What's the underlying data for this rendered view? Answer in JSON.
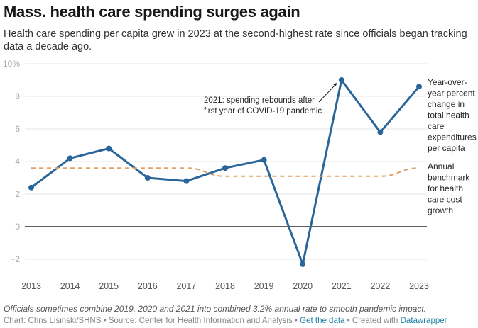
{
  "header": {
    "title": "Mass. health care spending surges again",
    "subtitle": "Health care spending per capita grew in 2023 at the second-highest rate since officials began tracking data a decade ago."
  },
  "chart_data": {
    "type": "line",
    "title": "Mass. health care spending surges again",
    "xlabel": "",
    "ylabel": "",
    "x": [
      "2013",
      "2014",
      "2015",
      "2016",
      "2017",
      "2018",
      "2019",
      "2020",
      "2021",
      "2022",
      "2023"
    ],
    "ylim": [
      -3,
      10
    ],
    "yticks": [
      -2,
      0,
      2,
      4,
      6,
      8,
      10
    ],
    "ytick_labels": [
      "−2",
      "0",
      "2",
      "4",
      "6",
      "8",
      "10%"
    ],
    "grid": true,
    "series": [
      {
        "name": "Year-over-year percent change in total health care expenditures per capita",
        "label_lines": [
          "Year-over-",
          "year percent",
          "change in",
          "total health",
          "care",
          "expenditures",
          "per capita"
        ],
        "color": "#2a6599",
        "style": "solid",
        "markers": true,
        "values": [
          2.4,
          4.2,
          4.8,
          3.0,
          2.8,
          3.6,
          4.1,
          -2.3,
          9.0,
          5.8,
          8.6
        ]
      },
      {
        "name": "Annual benchmark for health care cost growth",
        "label_lines": [
          "Annual",
          "benchmark",
          "for health",
          "care cost",
          "growth"
        ],
        "color": "#e0a165",
        "style": "dashed",
        "markers": false,
        "values": [
          3.6,
          3.6,
          3.6,
          3.6,
          3.6,
          3.1,
          3.1,
          3.1,
          3.1,
          3.1,
          3.6
        ]
      }
    ],
    "annotations": [
      {
        "x": "2021",
        "y": 9.0,
        "text_lines": [
          "2021: spending rebounds after",
          "first year of COVID-19 pandemic"
        ]
      }
    ],
    "legend": "right-inline"
  },
  "footer": {
    "notes": "Officials sometimes combine 2019, 2020 and 2021 into combined 3.2% annual rate to smooth pandemic impact.",
    "chart_credit": "Chart: Chris Lisinski/SHNS",
    "separator": " • ",
    "source": "Source: Center for Health Information and Analysis",
    "get_data_label": "Get the data",
    "created_with_prefix": "Created with ",
    "created_with_link": "Datawrapper"
  },
  "colors": {
    "line_primary": "#2a6599",
    "line_benchmark": "#e0a165",
    "gridline": "#e5e5e5",
    "zero_line": "#000000",
    "link": "#1d81a2"
  }
}
